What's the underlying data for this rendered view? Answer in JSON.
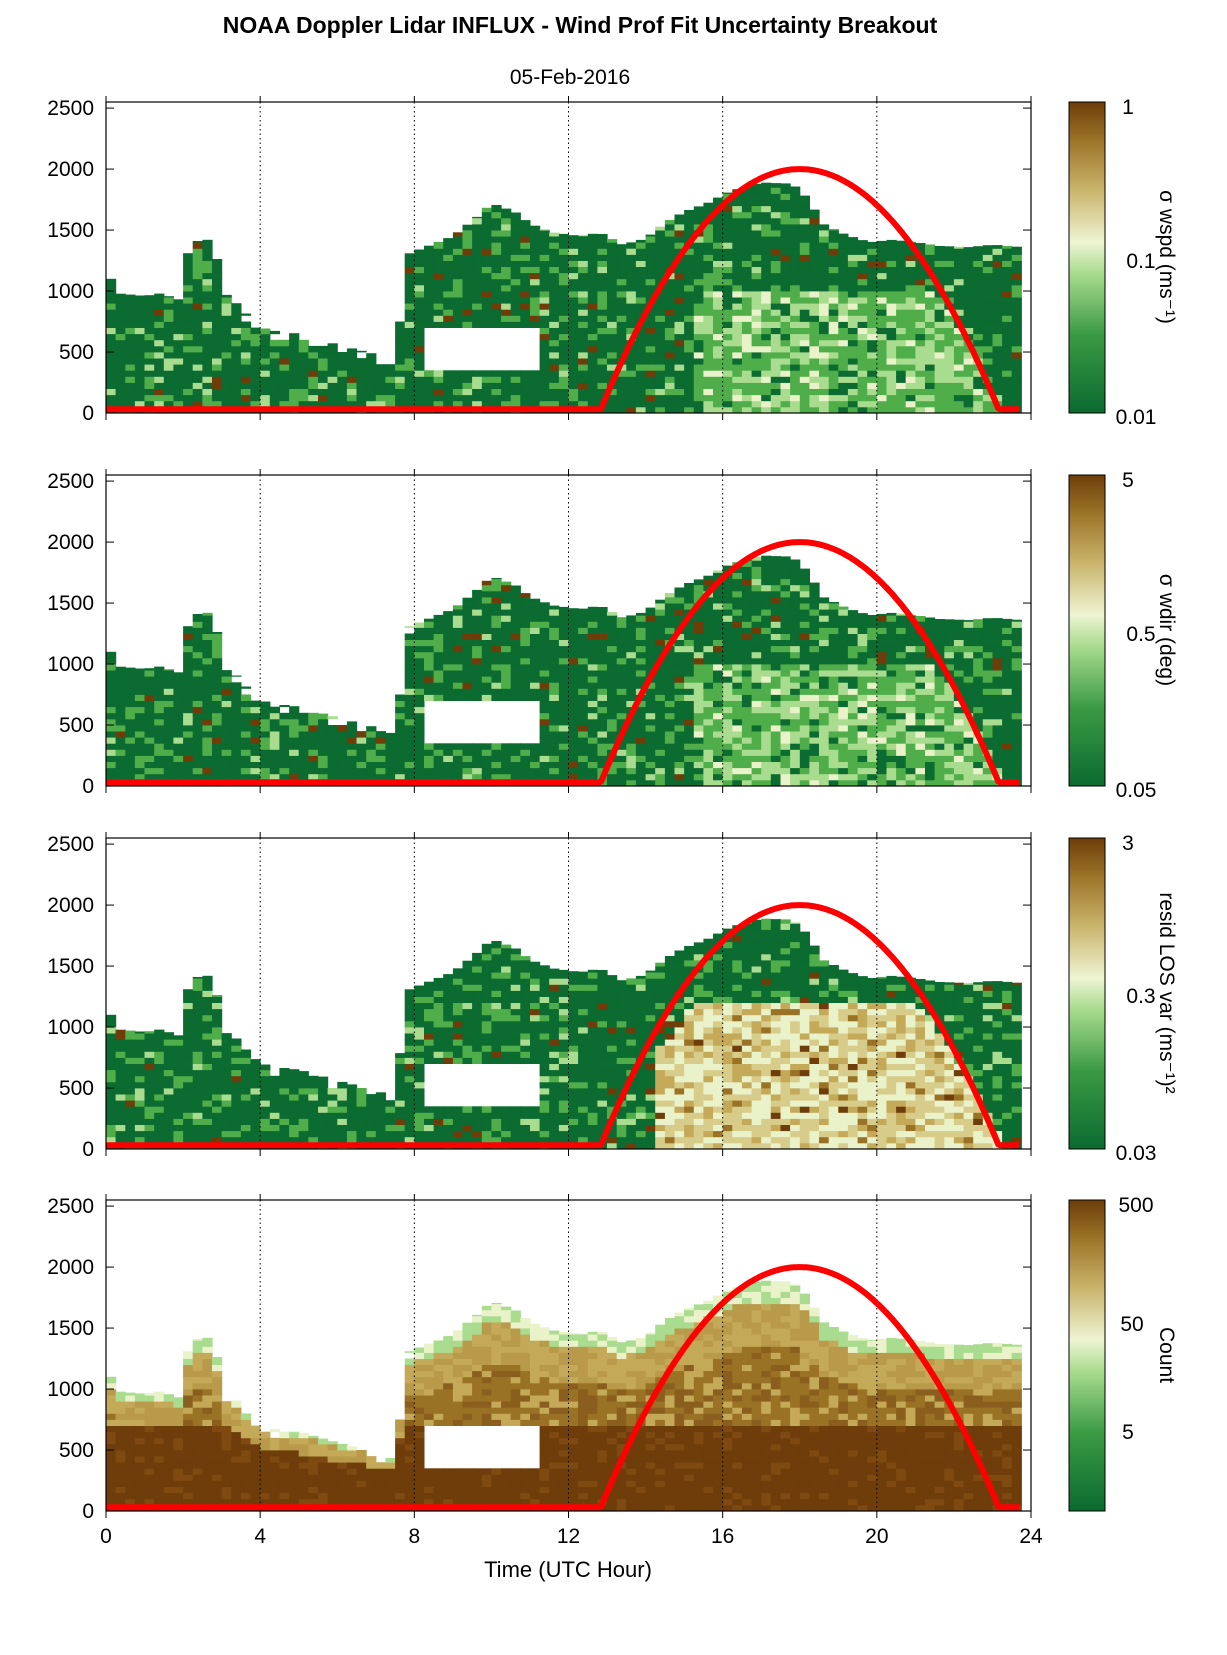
{
  "title": "NOAA Doppler Lidar INFLUX - Wind Prof Fit Uncertainty Breakout",
  "subtitle": "05-Feb-2016",
  "colors": {
    "green_dark": "#0b6b30",
    "green_mid": "#4fae4a",
    "green_light": "#a9dc8f",
    "pale": "#e9f2c8",
    "tan": "#c4aa58",
    "brown": "#6e3d0a",
    "sun_curve": "#ff0000"
  },
  "chart_data": {
    "type": "heatmap",
    "x_axis": {
      "label": "Time (UTC Hour)",
      "range": [
        0,
        24
      ],
      "ticks": [
        0,
        4,
        8,
        12,
        16,
        20,
        24
      ],
      "tick_labels": [
        "0",
        "4",
        "8",
        "12",
        "16",
        "20",
        "24"
      ]
    },
    "y_axis": {
      "range": [
        0,
        2550
      ],
      "ticks": [
        0,
        500,
        1000,
        1500,
        2000,
        2500
      ],
      "tick_labels": [
        "0",
        "500",
        "1000",
        "1500",
        "2000",
        "2500"
      ]
    },
    "grid": "vertical dotted lines at 4, 8, 12, 16, 20",
    "overlay_curve": {
      "color": "red",
      "flat_value": 30,
      "rise_start_x": 12.8,
      "peak": [
        18,
        2000
      ],
      "end_x": 23.2
    },
    "data_top_profile": [
      [
        0,
        1100
      ],
      [
        0.25,
        1100
      ],
      [
        0.3,
        980
      ],
      [
        1,
        960
      ],
      [
        1.4,
        980
      ],
      [
        1.7,
        950
      ],
      [
        2,
        920
      ],
      [
        2.1,
        1300
      ],
      [
        2.4,
        1420
      ],
      [
        2.8,
        1420
      ],
      [
        3,
        1000
      ],
      [
        3.4,
        900
      ],
      [
        3.8,
        750
      ],
      [
        4.2,
        680
      ],
      [
        5,
        650
      ],
      [
        6,
        560
      ],
      [
        7,
        480
      ],
      [
        7.5,
        420
      ],
      [
        7.8,
        1300
      ],
      [
        8.2,
        1350
      ],
      [
        9,
        1450
      ],
      [
        9.6,
        1600
      ],
      [
        10,
        1720
      ],
      [
        10.6,
        1650
      ],
      [
        11,
        1550
      ],
      [
        11.6,
        1480
      ],
      [
        12.3,
        1450
      ],
      [
        12.8,
        1480
      ],
      [
        13.4,
        1380
      ],
      [
        14,
        1430
      ],
      [
        14.5,
        1560
      ],
      [
        15,
        1650
      ],
      [
        15.6,
        1720
      ],
      [
        16.2,
        1820
      ],
      [
        17,
        1890
      ],
      [
        17.8,
        1880
      ],
      [
        18.2,
        1760
      ],
      [
        18.6,
        1550
      ],
      [
        19.2,
        1460
      ],
      [
        19.8,
        1400
      ],
      [
        20.4,
        1420
      ],
      [
        21,
        1400
      ],
      [
        21.6,
        1370
      ],
      [
        22.4,
        1360
      ],
      [
        23,
        1380
      ],
      [
        23.75,
        1360
      ]
    ],
    "clear_gap": {
      "x_start": 8.1,
      "x_end": 11.2,
      "bottom": 350,
      "top": 650
    },
    "panels": [
      {
        "colorbar_label": "σ wspd (ms⁻¹)",
        "colorbar_ticks": [
          "1",
          "0.1",
          "0.01"
        ],
        "scale": "log",
        "range": [
          0.01,
          1
        ]
      },
      {
        "colorbar_label": "σ wdir (deg)",
        "colorbar_ticks": [
          "5",
          "0.5",
          "0.05"
        ],
        "scale": "log",
        "range": [
          0.05,
          5
        ]
      },
      {
        "colorbar_label": "resid LOS var (ms⁻¹)²",
        "colorbar_ticks": [
          "3",
          "0.3",
          "0.03"
        ],
        "scale": "log",
        "range": [
          0.03,
          3
        ]
      },
      {
        "colorbar_label": "Count",
        "colorbar_ticks": [
          "500",
          "50",
          "5"
        ],
        "scale": "log",
        "range": [
          1,
          500
        ]
      }
    ]
  }
}
